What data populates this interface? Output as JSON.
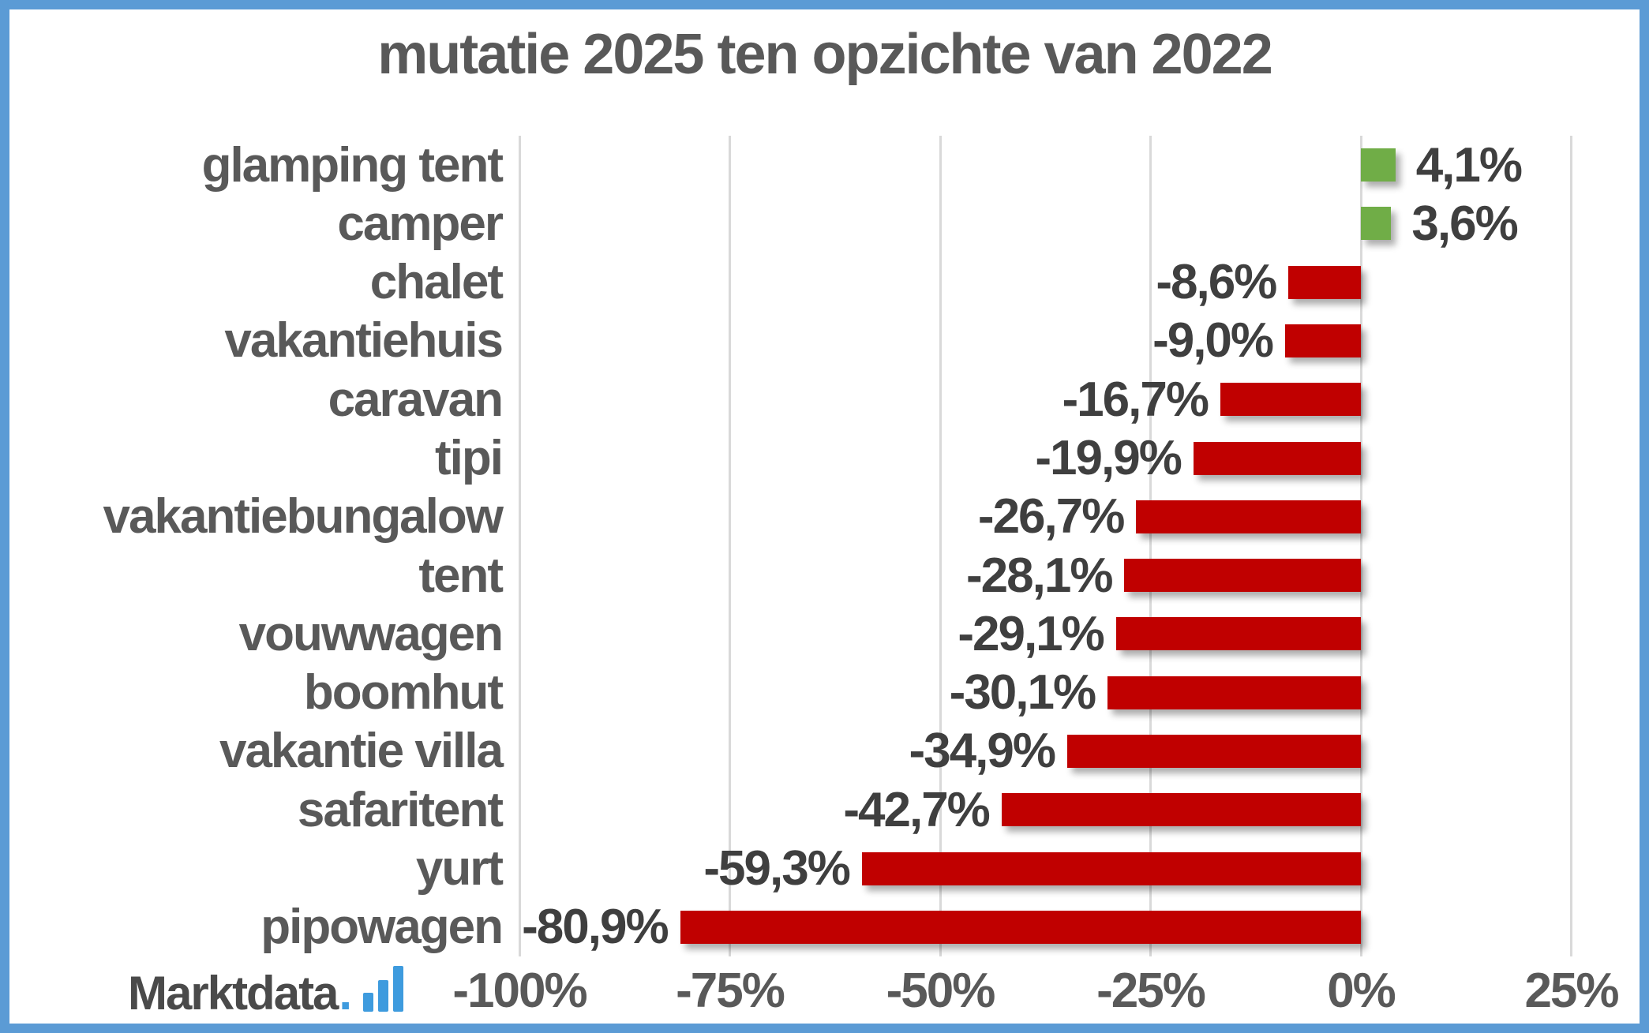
{
  "frame": {
    "border_color": "#5B9BD5",
    "background_color": "#FFFFFF"
  },
  "title": "mutatie 2025 ten opzichte van 2022",
  "logo": {
    "brand": "Marktdata.nl",
    "text": "Marktdata",
    "dot": ".",
    "icon": "nl-bars-icon",
    "text_color": "#4A4A4A",
    "accent_color": "#3E9BDE"
  },
  "chart_data": {
    "type": "bar",
    "orientation": "horizontal",
    "title": "mutatie 2025 ten opzichte van 2022",
    "categories": [
      "glamping tent",
      "camper",
      "chalet",
      "vakantiehuis",
      "caravan",
      "tipi",
      "vakantiebungalow",
      "tent",
      "vouwwagen",
      "boomhut",
      "vakantie villa",
      "safaritent",
      "yurt",
      "pipowagen"
    ],
    "values": [
      4.1,
      3.6,
      -8.6,
      -9.0,
      -16.7,
      -19.9,
      -26.7,
      -28.1,
      -29.1,
      -30.1,
      -34.9,
      -42.7,
      -59.3,
      -80.9
    ],
    "value_labels": [
      "4,1%",
      "3,6%",
      "-8,6%",
      "-9,0%",
      "-16,7%",
      "-19,9%",
      "-26,7%",
      "-28,1%",
      "-29,1%",
      "-30,1%",
      "-34,9%",
      "-42,7%",
      "-59,3%",
      "-80,9%"
    ],
    "positive_color": "#70AD47",
    "negative_color": "#C00000",
    "xlabel": "",
    "ylabel": "",
    "xlim": [
      -100,
      25
    ],
    "x_tick_values": [
      -100,
      -75,
      -50,
      -25,
      0,
      25
    ],
    "x_tick_labels": [
      "-100%",
      "-75%",
      "-50%",
      "-25%",
      "0%",
      "25%"
    ],
    "gridlines": true,
    "gridline_color": "#D9D9D9",
    "value_label_position": "outside-end",
    "legend": "none",
    "text_color": "#595959",
    "value_text_color": "#3F3F3F"
  }
}
